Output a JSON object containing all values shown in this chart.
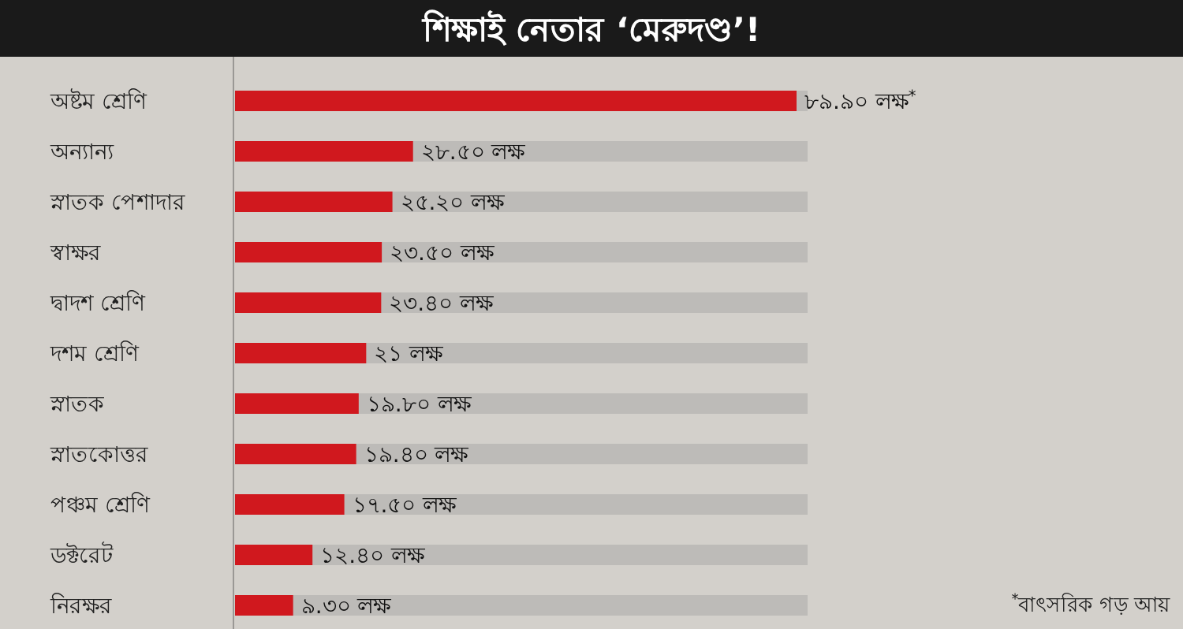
{
  "chart_data": {
    "type": "bar",
    "orientation": "horizontal",
    "title": "শিক্ষাই নেতার ‘মেরুদণ্ড’!",
    "categories": [
      "অষ্টম শ্রেণি",
      "অন্যান্য",
      "স্নাতক পেশাদার",
      "স্বাক্ষর",
      "দ্বাদশ শ্রেণি",
      "দশম শ্রেণি",
      "স্নাতক",
      "স্নাতকোত্তর",
      "পঞ্চম শ্রেণি",
      "ডক্টরেট",
      "নিরক্ষর"
    ],
    "values": [
      89.9,
      28.5,
      25.2,
      23.5,
      23.4,
      21,
      19.8,
      19.4,
      17.5,
      12.4,
      9.3
    ],
    "value_labels": [
      "৮৯.৯০ লক্ষ$^{*}$",
      "২৮.৫০ লক্ষ",
      "২৫.২০ লক্ষ",
      "২৩.৫০ লক্ষ",
      "২৩.৪০ লক্ষ",
      "২১ লক্ষ",
      "১৯.৮০ লক্ষ",
      "১৯.৪০ লক্ষ",
      "১৭.৫০ লক্ষ",
      "১২.৪০ লক্ষ",
      "৯.৩০ লক্ষ"
    ],
    "color": "#d0181e",
    "annotations": [
      "$^{*}$বাৎসরিক গড় আয়"
    ]
  }
}
